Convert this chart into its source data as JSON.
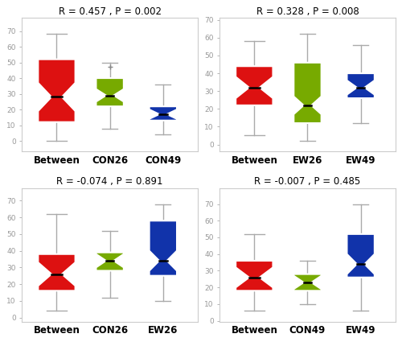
{
  "subplots": [
    {
      "title": "R = 0.457 , P = 0.002",
      "labels": [
        "Between",
        "CON26",
        "CON49"
      ],
      "colors": [
        "#dd1111",
        "#77aa00",
        "#1133aa"
      ],
      "boxes": [
        {
          "whislo": 0,
          "q1": 12,
          "med": 28,
          "q3": 52,
          "whishi": 68,
          "notchlo": 19,
          "notchhi": 37,
          "fliers": []
        },
        {
          "whislo": 8,
          "q1": 22,
          "med": 29,
          "q3": 40,
          "whishi": 50,
          "notchlo": 25,
          "notchhi": 33,
          "fliers": [
            47
          ]
        },
        {
          "whislo": 4,
          "q1": 13,
          "med": 17,
          "q3": 22,
          "whishi": 36,
          "notchlo": 14,
          "notchhi": 20,
          "fliers": []
        }
      ]
    },
    {
      "title": "R = 0.328 , P = 0.008",
      "labels": [
        "Between",
        "EW26",
        "EW49"
      ],
      "colors": [
        "#dd1111",
        "#77aa00",
        "#1133aa"
      ],
      "boxes": [
        {
          "whislo": 5,
          "q1": 22,
          "med": 32,
          "q3": 44,
          "whishi": 58,
          "notchlo": 26,
          "notchhi": 38,
          "fliers": []
        },
        {
          "whislo": 2,
          "q1": 12,
          "med": 22,
          "q3": 46,
          "whishi": 62,
          "notchlo": 17,
          "notchhi": 27,
          "fliers": []
        },
        {
          "whislo": 12,
          "q1": 26,
          "med": 32,
          "q3": 40,
          "whishi": 56,
          "notchlo": 28,
          "notchhi": 36,
          "fliers": []
        }
      ]
    },
    {
      "title": "R = -0.074 , P = 0.891",
      "labels": [
        "Between",
        "CON26",
        "EW26"
      ],
      "colors": [
        "#dd1111",
        "#77aa00",
        "#1133aa"
      ],
      "boxes": [
        {
          "whislo": 4,
          "q1": 16,
          "med": 26,
          "q3": 38,
          "whishi": 62,
          "notchlo": 19,
          "notchhi": 33,
          "fliers": []
        },
        {
          "whislo": 12,
          "q1": 28,
          "med": 34,
          "q3": 39,
          "whishi": 52,
          "notchlo": 30,
          "notchhi": 38,
          "fliers": []
        },
        {
          "whislo": 10,
          "q1": 25,
          "med": 34,
          "q3": 58,
          "whishi": 68,
          "notchlo": 28,
          "notchhi": 40,
          "fliers": []
        }
      ]
    },
    {
      "title": "R = -0.007 , P = 0.485",
      "labels": [
        "Between",
        "CON49",
        "EW49"
      ],
      "colors": [
        "#dd1111",
        "#77aa00",
        "#1133aa"
      ],
      "boxes": [
        {
          "whislo": 6,
          "q1": 18,
          "med": 26,
          "q3": 36,
          "whishi": 52,
          "notchlo": 20,
          "notchhi": 32,
          "fliers": []
        },
        {
          "whislo": 10,
          "q1": 18,
          "med": 23,
          "q3": 28,
          "whishi": 36,
          "notchlo": 19,
          "notchhi": 27,
          "fliers": []
        },
        {
          "whislo": 6,
          "q1": 26,
          "med": 34,
          "q3": 52,
          "whishi": 70,
          "notchlo": 28,
          "notchhi": 40,
          "fliers": []
        }
      ]
    }
  ],
  "background_color": "#ffffff",
  "whisker_color": "#aaaaaa",
  "median_color": "#000000",
  "title_fontsize": 8.5,
  "label_fontsize": 8.5,
  "label_fontweight": "bold",
  "notch_indent": 0.28
}
